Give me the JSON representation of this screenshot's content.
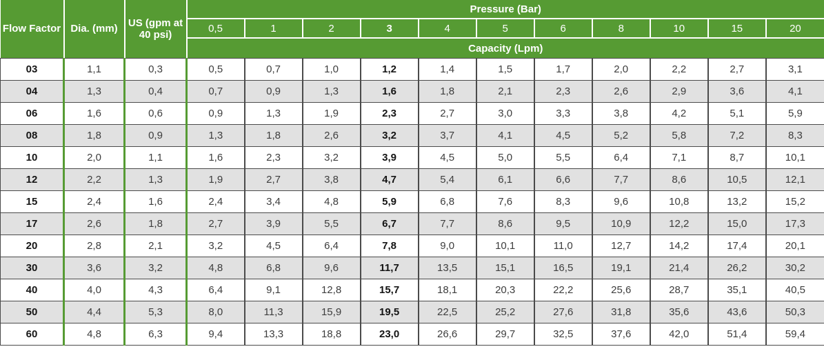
{
  "table": {
    "headers": {
      "flow_factor": "Flow Factor",
      "dia": "Dia. (mm)",
      "us_gpm": "US (gpm at 40 psi)",
      "pressure": "Pressure (Bar)",
      "capacity": "Capacity (Lpm)"
    },
    "pressure_columns": [
      "0,5",
      "1",
      "2",
      "3",
      "4",
      "5",
      "6",
      "8",
      "10",
      "15",
      "20"
    ],
    "bold_column_index": 3,
    "rows": [
      {
        "flow_factor": "03",
        "dia_mm": "1,1",
        "us_gpm": "0,3",
        "capacities": [
          "0,5",
          "0,7",
          "1,0",
          "1,2",
          "1,4",
          "1,5",
          "1,7",
          "2,0",
          "2,2",
          "2,7",
          "3,1"
        ]
      },
      {
        "flow_factor": "04",
        "dia_mm": "1,3",
        "us_gpm": "0,4",
        "capacities": [
          "0,7",
          "0,9",
          "1,3",
          "1,6",
          "1,8",
          "2,1",
          "2,3",
          "2,6",
          "2,9",
          "3,6",
          "4,1"
        ]
      },
      {
        "flow_factor": "06",
        "dia_mm": "1,6",
        "us_gpm": "0,6",
        "capacities": [
          "0,9",
          "1,3",
          "1,9",
          "2,3",
          "2,7",
          "3,0",
          "3,3",
          "3,8",
          "4,2",
          "5,1",
          "5,9"
        ]
      },
      {
        "flow_factor": "08",
        "dia_mm": "1,8",
        "us_gpm": "0,9",
        "capacities": [
          "1,3",
          "1,8",
          "2,6",
          "3,2",
          "3,7",
          "4,1",
          "4,5",
          "5,2",
          "5,8",
          "7,2",
          "8,3"
        ]
      },
      {
        "flow_factor": "10",
        "dia_mm": "2,0",
        "us_gpm": "1,1",
        "capacities": [
          "1,6",
          "2,3",
          "3,2",
          "3,9",
          "4,5",
          "5,0",
          "5,5",
          "6,4",
          "7,1",
          "8,7",
          "10,1"
        ]
      },
      {
        "flow_factor": "12",
        "dia_mm": "2,2",
        "us_gpm": "1,3",
        "capacities": [
          "1,9",
          "2,7",
          "3,8",
          "4,7",
          "5,4",
          "6,1",
          "6,6",
          "7,7",
          "8,6",
          "10,5",
          "12,1"
        ]
      },
      {
        "flow_factor": "15",
        "dia_mm": "2,4",
        "us_gpm": "1,6",
        "capacities": [
          "2,4",
          "3,4",
          "4,8",
          "5,9",
          "6,8",
          "7,6",
          "8,3",
          "9,6",
          "10,8",
          "13,2",
          "15,2"
        ]
      },
      {
        "flow_factor": "17",
        "dia_mm": "2,6",
        "us_gpm": "1,8",
        "capacities": [
          "2,7",
          "3,9",
          "5,5",
          "6,7",
          "7,7",
          "8,6",
          "9,5",
          "10,9",
          "12,2",
          "15,0",
          "17,3"
        ]
      },
      {
        "flow_factor": "20",
        "dia_mm": "2,8",
        "us_gpm": "2,1",
        "capacities": [
          "3,2",
          "4,5",
          "6,4",
          "7,8",
          "9,0",
          "10,1",
          "11,0",
          "12,7",
          "14,2",
          "17,4",
          "20,1"
        ]
      },
      {
        "flow_factor": "30",
        "dia_mm": "3,6",
        "us_gpm": "3,2",
        "capacities": [
          "4,8",
          "6,8",
          "9,6",
          "11,7",
          "13,5",
          "15,1",
          "16,5",
          "19,1",
          "21,4",
          "26,2",
          "30,2"
        ]
      },
      {
        "flow_factor": "40",
        "dia_mm": "4,0",
        "us_gpm": "4,3",
        "capacities": [
          "6,4",
          "9,1",
          "12,8",
          "15,7",
          "18,1",
          "20,3",
          "22,2",
          "25,6",
          "28,7",
          "35,1",
          "40,5"
        ]
      },
      {
        "flow_factor": "50",
        "dia_mm": "4,4",
        "us_gpm": "5,3",
        "capacities": [
          "8,0",
          "11,3",
          "15,9",
          "19,5",
          "22,5",
          "25,2",
          "27,6",
          "31,8",
          "35,6",
          "43,6",
          "50,3"
        ]
      },
      {
        "flow_factor": "60",
        "dia_mm": "4,8",
        "us_gpm": "6,3",
        "capacities": [
          "9,4",
          "13,3",
          "18,8",
          "23,0",
          "26,6",
          "29,7",
          "32,5",
          "37,6",
          "42,0",
          "51,4",
          "59,4"
        ]
      }
    ]
  },
  "colors": {
    "header_green": "#569B33",
    "row_stripe_gray": "#E1E1E1",
    "grid_dark": "#4a4a4a",
    "header_text": "#ffffff"
  },
  "chart_data": {
    "type": "table",
    "title": "Pressure (Bar) / Capacity (Lpm) by Flow Factor",
    "columns": [
      "Flow Factor",
      "Dia. (mm)",
      "US (gpm at 40 psi)",
      "0,5",
      "1",
      "2",
      "3",
      "4",
      "5",
      "6",
      "8",
      "10",
      "15",
      "20"
    ],
    "column_group_label": "Pressure (Bar)",
    "value_unit_label": "Capacity (Lpm)",
    "emphasized_column": "3",
    "rows": [
      [
        "03",
        "1,1",
        "0,3",
        "0,5",
        "0,7",
        "1,0",
        "1,2",
        "1,4",
        "1,5",
        "1,7",
        "2,0",
        "2,2",
        "2,7",
        "3,1"
      ],
      [
        "04",
        "1,3",
        "0,4",
        "0,7",
        "0,9",
        "1,3",
        "1,6",
        "1,8",
        "2,1",
        "2,3",
        "2,6",
        "2,9",
        "3,6",
        "4,1"
      ],
      [
        "06",
        "1,6",
        "0,6",
        "0,9",
        "1,3",
        "1,9",
        "2,3",
        "2,7",
        "3,0",
        "3,3",
        "3,8",
        "4,2",
        "5,1",
        "5,9"
      ],
      [
        "08",
        "1,8",
        "0,9",
        "1,3",
        "1,8",
        "2,6",
        "3,2",
        "3,7",
        "4,1",
        "4,5",
        "5,2",
        "5,8",
        "7,2",
        "8,3"
      ],
      [
        "10",
        "2,0",
        "1,1",
        "1,6",
        "2,3",
        "3,2",
        "3,9",
        "4,5",
        "5,0",
        "5,5",
        "6,4",
        "7,1",
        "8,7",
        "10,1"
      ],
      [
        "12",
        "2,2",
        "1,3",
        "1,9",
        "2,7",
        "3,8",
        "4,7",
        "5,4",
        "6,1",
        "6,6",
        "7,7",
        "8,6",
        "10,5",
        "12,1"
      ],
      [
        "15",
        "2,4",
        "1,6",
        "2,4",
        "3,4",
        "4,8",
        "5,9",
        "6,8",
        "7,6",
        "8,3",
        "9,6",
        "10,8",
        "13,2",
        "15,2"
      ],
      [
        "17",
        "2,6",
        "1,8",
        "2,7",
        "3,9",
        "5,5",
        "6,7",
        "7,7",
        "8,6",
        "9,5",
        "10,9",
        "12,2",
        "15,0",
        "17,3"
      ],
      [
        "20",
        "2,8",
        "2,1",
        "3,2",
        "4,5",
        "6,4",
        "7,8",
        "9,0",
        "10,1",
        "11,0",
        "12,7",
        "14,2",
        "17,4",
        "20,1"
      ],
      [
        "30",
        "3,6",
        "3,2",
        "4,8",
        "6,8",
        "9,6",
        "11,7",
        "13,5",
        "15,1",
        "16,5",
        "19,1",
        "21,4",
        "26,2",
        "30,2"
      ],
      [
        "40",
        "4,0",
        "4,3",
        "6,4",
        "9,1",
        "12,8",
        "15,7",
        "18,1",
        "20,3",
        "22,2",
        "25,6",
        "28,7",
        "35,1",
        "40,5"
      ],
      [
        "50",
        "4,4",
        "5,3",
        "8,0",
        "11,3",
        "15,9",
        "19,5",
        "22,5",
        "25,2",
        "27,6",
        "31,8",
        "35,6",
        "43,6",
        "50,3"
      ],
      [
        "60",
        "4,8",
        "6,3",
        "9,4",
        "13,3",
        "18,8",
        "23,0",
        "26,6",
        "29,7",
        "32,5",
        "37,6",
        "42,0",
        "51,4",
        "59,4"
      ]
    ]
  }
}
